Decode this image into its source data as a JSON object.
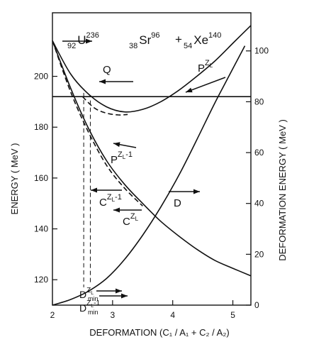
{
  "chart_data": {
    "type": "line",
    "title": "",
    "reaction": {
      "A_target": "236",
      "Z_target": "92",
      "target": "U",
      "A_frag1": "96",
      "Z_frag1": "38",
      "frag1": "Sr",
      "plus": "+",
      "A_frag2": "140",
      "Z_frag2": "54",
      "frag2": "Xe"
    },
    "xlabel": "DEFORMATION  (C₁ / A₁ + C₂ / A₂)",
    "ylabel_left": "ENERGY ( MeV )",
    "ylabel_right": "DEFORMATION ENERGY ( MeV )",
    "xlim": [
      2,
      5.3
    ],
    "ylim_left": [
      110,
      225
    ],
    "ylim_right": [
      0,
      115
    ],
    "xticks": [
      2,
      3,
      4,
      5
    ],
    "yticks_left": [
      120,
      140,
      160,
      180,
      200
    ],
    "yticks_right": [
      0,
      20,
      40,
      60,
      80,
      100
    ],
    "grid": false,
    "legend": "none",
    "series": [
      {
        "name": "P^ZL",
        "axis": "left",
        "style": "solid",
        "x": [
          2.0,
          2.3,
          2.6,
          2.9,
          3.2,
          3.5,
          3.8,
          4.1,
          4.4,
          4.7,
          5.0,
          5.3
        ],
        "y": [
          214,
          201,
          193,
          188,
          186,
          187,
          190,
          194.5,
          200,
          206,
          213,
          220
        ]
      },
      {
        "name": "P^(ZL-1)",
        "axis": "left",
        "style": "dashed",
        "x": [
          2.5,
          2.7,
          2.9,
          3.1,
          3.25
        ],
        "y": [
          192,
          187.5,
          185.5,
          184.8,
          185
        ]
      },
      {
        "name": "C^ZL",
        "axis": "left",
        "style": "solid",
        "x": [
          2.0,
          2.3,
          2.6,
          2.9,
          3.2,
          3.5,
          3.8,
          4.1,
          4.4,
          4.7,
          5.0,
          5.3
        ],
        "y": [
          214,
          195.5,
          179.5,
          166.8,
          157.5,
          150,
          143,
          137.2,
          132,
          127.6,
          124.5,
          121.5
        ]
      },
      {
        "name": "C^(ZL-1)",
        "axis": "left",
        "style": "dashed",
        "x": [
          2.0,
          2.3,
          2.6,
          2.9,
          3.2,
          3.5
        ],
        "y": [
          214,
          194,
          178,
          165,
          156,
          149
        ]
      },
      {
        "name": "D",
        "axis": "right",
        "style": "solid",
        "x": [
          2.0,
          2.3,
          2.6,
          2.9,
          3.2,
          3.5,
          3.8,
          4.1,
          4.4,
          4.7,
          5.0,
          5.2
        ],
        "y": [
          0,
          2.2,
          5.5,
          10.5,
          18,
          27.5,
          38.5,
          51,
          65,
          79.5,
          93,
          102
        ]
      },
      {
        "name": "Q",
        "axis": "left",
        "style": "solid",
        "x": [
          2.0,
          5.3
        ],
        "y": [
          192,
          192
        ]
      }
    ],
    "annotations": {
      "Q": "Q",
      "P_ZL": "P",
      "P_ZL_sup": "Z",
      "P_ZL_sub": "L",
      "P_ZL1": "P",
      "P_ZL1_sup": "Z",
      "P_ZL1_sub": "L",
      "P_ZL1_tail": "-1",
      "C_ZL1": "C",
      "C_ZL1_sup": "Z",
      "C_ZL1_sub": "L",
      "C_ZL1_tail": "-1",
      "C_ZL": "C",
      "C_ZL_sup": "Z",
      "C_ZL_sub": "L",
      "D": "D",
      "Dmin1": "D",
      "Dmin1_sub": "min",
      "Dmin1_sup": "Z",
      "Dmin1_supsub": "L",
      "Dmin2": "D",
      "Dmin2_sub": "min",
      "Dmin2_sup": "Z",
      "Dmin2_supsub": "L",
      "Dmin2_tail": "-1"
    }
  }
}
